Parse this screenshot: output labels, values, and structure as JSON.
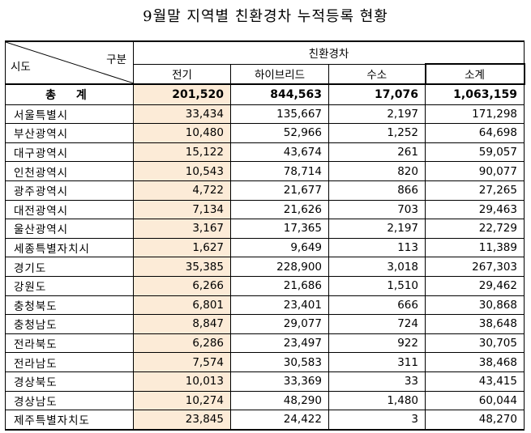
{
  "title": "9월말 지역별 친환경차 누적등록 현황",
  "header": {
    "col_group": "구분",
    "row_group": "시도",
    "category": "친환경차",
    "columns": [
      "전기",
      "하이브리드",
      "수소",
      "소계"
    ]
  },
  "total": {
    "name": "총  계",
    "values": [
      "201,520",
      "844,563",
      "17,076",
      "1,063,159"
    ]
  },
  "rows": [
    {
      "name": "서울특별시",
      "values": [
        "33,434",
        "135,667",
        "2,197",
        "171,298"
      ]
    },
    {
      "name": "부산광역시",
      "values": [
        "10,480",
        "52,966",
        "1,252",
        "64,698"
      ]
    },
    {
      "name": "대구광역시",
      "values": [
        "15,122",
        "43,674",
        "261",
        "59,057"
      ]
    },
    {
      "name": "인천광역시",
      "values": [
        "10,543",
        "78,714",
        "820",
        "90,077"
      ]
    },
    {
      "name": "광주광역시",
      "values": [
        "4,722",
        "21,677",
        "866",
        "27,265"
      ]
    },
    {
      "name": "대전광역시",
      "values": [
        "7,134",
        "21,626",
        "703",
        "29,463"
      ]
    },
    {
      "name": "울산광역시",
      "values": [
        "3,167",
        "17,365",
        "2,197",
        "22,729"
      ]
    },
    {
      "name": "세종특별자치시",
      "values": [
        "1,627",
        "9,649",
        "113",
        "11,389"
      ]
    },
    {
      "name": "경기도",
      "values": [
        "35,385",
        "228,900",
        "3,018",
        "267,303"
      ]
    },
    {
      "name": "강원도",
      "values": [
        "6,266",
        "21,686",
        "1,510",
        "29,462"
      ]
    },
    {
      "name": "충청북도",
      "values": [
        "6,801",
        "23,401",
        "666",
        "30,868"
      ]
    },
    {
      "name": "충청남도",
      "values": [
        "8,847",
        "29,077",
        "724",
        "38,648"
      ]
    },
    {
      "name": "전라북도",
      "values": [
        "6,286",
        "23,497",
        "922",
        "30,705"
      ]
    },
    {
      "name": "전라남도",
      "values": [
        "7,574",
        "30,583",
        "311",
        "38,468"
      ]
    },
    {
      "name": "경상북도",
      "values": [
        "10,013",
        "33,369",
        "33",
        "43,415"
      ]
    },
    {
      "name": "경상남도",
      "values": [
        "10,274",
        "48,290",
        "1,480",
        "60,044"
      ]
    },
    {
      "name": "제주특별자치도",
      "values": [
        "23,845",
        "24,422",
        "3",
        "48,270"
      ]
    }
  ]
}
